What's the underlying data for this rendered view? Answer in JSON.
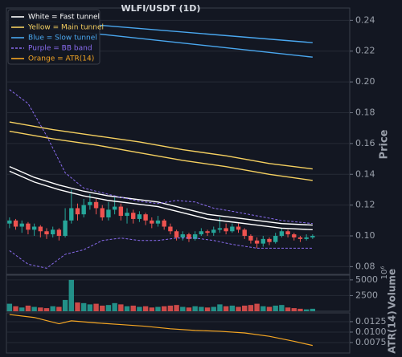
{
  "chart_data": {
    "type": "candlestick",
    "title": "WLFI/USDT (1D)",
    "ylabel": "Price",
    "up_color": "#26a69a",
    "down_color": "#ef5350",
    "grid": true,
    "legend": "upper left",
    "xlim": [
      -0.5,
      55
    ],
    "ylim": [
      0.075,
      0.248
    ],
    "yticks": [
      0.08,
      {
        "value": 0.1,
        "label": "0.10"
      },
      0.12,
      0.14,
      0.16,
      0.18,
      {
        "value": 0.2,
        "label": "0.20"
      },
      0.22,
      0.24
    ],
    "open": [
      0.108,
      0.11,
      0.106,
      0.108,
      0.104,
      0.106,
      0.103,
      0.101,
      0.104,
      0.1,
      0.11,
      0.118,
      0.114,
      0.12,
      0.122,
      0.118,
      0.112,
      0.117,
      0.119,
      0.113,
      0.115,
      0.111,
      0.114,
      0.11,
      0.108,
      0.11,
      0.106,
      0.103,
      0.099,
      0.101,
      0.098,
      0.101,
      0.103,
      0.102,
      0.104,
      0.105,
      0.103,
      0.106,
      0.104,
      0.1,
      0.097,
      0.095,
      0.098,
      0.096,
      0.1,
      0.103,
      0.101,
      0.099,
      0.098,
      0.099
    ],
    "high": [
      0.112,
      0.111,
      0.11,
      0.109,
      0.108,
      0.107,
      0.105,
      0.106,
      0.105,
      0.118,
      0.13,
      0.121,
      0.124,
      0.127,
      0.124,
      0.12,
      0.122,
      0.125,
      0.121,
      0.118,
      0.117,
      0.116,
      0.115,
      0.112,
      0.113,
      0.111,
      0.108,
      0.104,
      0.103,
      0.102,
      0.103,
      0.105,
      0.104,
      0.106,
      0.112,
      0.108,
      0.108,
      0.108,
      0.105,
      0.101,
      0.099,
      0.1,
      0.099,
      0.102,
      0.105,
      0.104,
      0.102,
      0.1,
      0.101,
      0.101
    ],
    "low": [
      0.105,
      0.104,
      0.102,
      0.101,
      0.1,
      0.099,
      0.098,
      0.099,
      0.097,
      0.099,
      0.108,
      0.11,
      0.112,
      0.117,
      0.114,
      0.11,
      0.11,
      0.114,
      0.11,
      0.108,
      0.108,
      0.109,
      0.107,
      0.105,
      0.106,
      0.104,
      0.101,
      0.097,
      0.097,
      0.096,
      0.097,
      0.1,
      0.1,
      0.1,
      0.102,
      0.101,
      0.102,
      0.102,
      0.098,
      0.095,
      0.092,
      0.093,
      0.094,
      0.095,
      0.099,
      0.099,
      0.097,
      0.096,
      0.097,
      0.098
    ],
    "close": [
      0.11,
      0.106,
      0.108,
      0.104,
      0.106,
      0.103,
      0.101,
      0.104,
      0.1,
      0.11,
      0.118,
      0.114,
      0.12,
      0.122,
      0.118,
      0.112,
      0.117,
      0.119,
      0.113,
      0.115,
      0.111,
      0.114,
      0.11,
      0.108,
      0.11,
      0.106,
      0.103,
      0.099,
      0.101,
      0.098,
      0.101,
      0.103,
      0.102,
      0.104,
      0.105,
      0.103,
      0.106,
      0.104,
      0.1,
      0.097,
      0.095,
      0.098,
      0.096,
      0.1,
      0.103,
      0.101,
      0.099,
      0.098,
      0.099,
      0.1
    ],
    "overlays": [
      {
        "name": "White = Fast tunnel",
        "color": "#ffffff",
        "dash": false,
        "x": [
          0,
          4,
          8,
          12,
          16,
          20,
          24,
          28,
          32,
          36,
          40,
          44,
          49
        ],
        "upper": [
          0.145,
          0.138,
          0.133,
          0.129,
          0.126,
          0.124,
          0.122,
          0.118,
          0.114,
          0.112,
          0.11,
          0.108,
          0.107
        ],
        "lower": [
          0.142,
          0.135,
          0.13,
          0.126,
          0.123,
          0.121,
          0.119,
          0.115,
          0.111,
          0.109,
          0.107,
          0.105,
          0.104
        ]
      },
      {
        "name": "Yellow = Main tunnel",
        "color": "#f5d060",
        "dash": false,
        "x": [
          0,
          7,
          14,
          21,
          28,
          35,
          42,
          49
        ],
        "upper": [
          0.174,
          0.169,
          0.165,
          0.161,
          0.156,
          0.152,
          0.147,
          0.1435
        ],
        "lower": [
          0.168,
          0.163,
          0.159,
          0.154,
          0.149,
          0.145,
          0.14,
          0.136
        ]
      },
      {
        "name": "Blue = Slow tunnel",
        "color": "#4aa8f0",
        "dash": false,
        "x": [
          0,
          49
        ],
        "upper": [
          0.2416,
          0.2255
        ],
        "lower": [
          0.2374,
          0.2161
        ]
      },
      {
        "name": "Purple = BB band",
        "color": "#8a6cf0",
        "dash": true,
        "x": [
          0,
          3,
          6,
          9,
          12,
          15,
          18,
          21,
          24,
          27,
          30,
          33,
          36,
          40,
          44,
          49
        ],
        "upper": [
          0.195,
          0.186,
          0.165,
          0.141,
          0.131,
          0.128,
          0.125,
          0.1225,
          0.121,
          0.123,
          0.122,
          0.118,
          0.116,
          0.113,
          0.11,
          0.108
        ],
        "lower": [
          0.0904,
          0.0816,
          0.079,
          0.088,
          0.091,
          0.097,
          0.0986,
          0.097,
          0.097,
          0.0986,
          0.0986,
          0.097,
          0.0945,
          0.092,
          0.092,
          0.092
        ]
      }
    ],
    "volume": {
      "ylabel": "Volume",
      "offset_label": "10⁶",
      "ylim": [
        0,
        5750
      ],
      "yticks": [
        2500,
        5000
      ],
      "values": [
        1200,
        800,
        600,
        900,
        700,
        600,
        500,
        800,
        700,
        1800,
        5000,
        1400,
        1300,
        1100,
        1200,
        900,
        1000,
        1300,
        1100,
        800,
        900,
        700,
        800,
        600,
        700,
        800,
        900,
        1000,
        700,
        600,
        800,
        700,
        600,
        700,
        1100,
        800,
        900,
        700,
        900,
        1000,
        1200,
        800,
        700,
        900,
        1000,
        600,
        500,
        400,
        300,
        400
      ]
    },
    "atr": {
      "name": "Orange = ATR(14)",
      "ylabel": "ATR(14)",
      "color": "#f5a623",
      "ylim": [
        0.005,
        0.0146
      ],
      "yticks": [
        {
          "value": 0.0075,
          "label": "0.0075"
        },
        {
          "value": 0.01,
          "label": "0.0100"
        },
        0.0125
      ],
      "x": [
        0,
        4,
        8,
        10,
        14,
        18,
        22,
        26,
        30,
        34,
        38,
        42,
        46,
        49
      ],
      "values": [
        0.0142,
        0.0135,
        0.012,
        0.0127,
        0.0122,
        0.0118,
        0.0114,
        0.0108,
        0.0104,
        0.0102,
        0.0098,
        0.009,
        0.0078,
        0.0068
      ]
    }
  }
}
